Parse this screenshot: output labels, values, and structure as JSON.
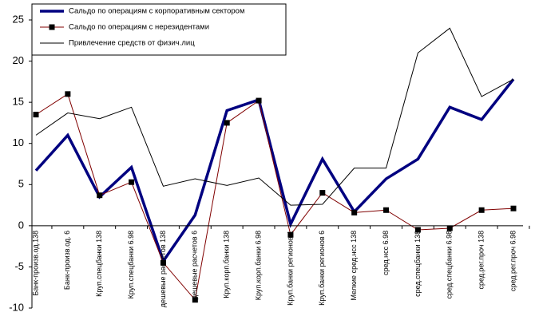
{
  "chart_data": {
    "type": "line",
    "categories": [
      "Банк-произв.од.138",
      "Банк-произв.од. 6",
      "Круп.спецбанки 138",
      "Круп.спецбанки 6.98",
      "дешевые расчетов 138",
      "дешевые расчетов 6",
      "Круп.корп.банки 138",
      "Круп.корп.банки 6.98",
      "Круп.банки регионов 1",
      "Круп.банки регионов 6",
      "Мелкие сред.нсс 138",
      "сред.нсс 6.98",
      "сред.спецбанки 138",
      "сред.спецбанки 6.98",
      "сред.рег.проч 138",
      "сред.рег.проч 6.98"
    ],
    "series": [
      {
        "name": "Сальдо по операциям с корпоративным сектором",
        "color": "#000080",
        "width": 3.5,
        "marker": false,
        "values": [
          6.7,
          11,
          3.5,
          7.1,
          -4.3,
          1.3,
          14,
          15.3,
          0.2,
          8.1,
          1.7,
          5.7,
          8.1,
          14.4,
          12.9,
          17.8
        ]
      },
      {
        "name": "Сальдо по операциям с нерезидентами",
        "color": "#800000",
        "width": 1,
        "marker": true,
        "values": [
          13.5,
          16,
          3.7,
          5.3,
          -4.5,
          -9,
          12.5,
          15.2,
          -1.1,
          4,
          1.6,
          1.9,
          -0.5,
          -0.3,
          1.9,
          2.1
        ]
      },
      {
        "name": "Привлечение средств от физич.лиц",
        "color": "#000000",
        "width": 1,
        "marker": false,
        "values": [
          11,
          13.7,
          13,
          14.4,
          4.8,
          5.7,
          4.9,
          5.8,
          2.5,
          2.6,
          7,
          7,
          21,
          24,
          15.7,
          17.8
        ]
      }
    ],
    "ylim": [
      -10,
      25
    ],
    "yticks": [
      -10,
      -5,
      0,
      5,
      10,
      15,
      20,
      25
    ]
  }
}
